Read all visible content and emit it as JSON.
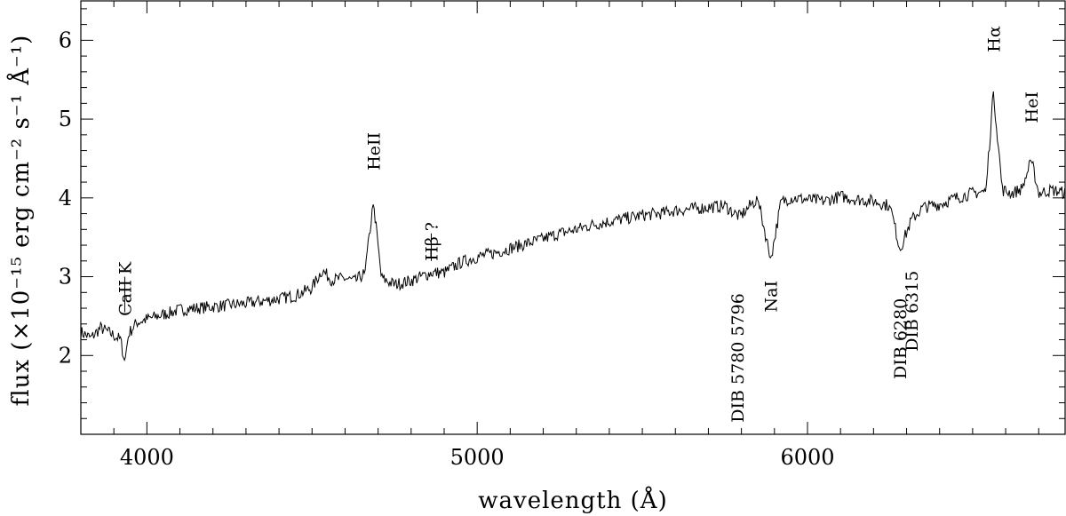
{
  "chart_data": {
    "type": "line",
    "xlabel": "wavelength (Å)",
    "ylabel": "flux (×10⁻¹⁵ erg cm⁻² s⁻¹ Å⁻¹)",
    "xlim": [
      3800,
      6780
    ],
    "ylim": [
      1.0,
      6.5
    ],
    "x_ticks": [
      {
        "value": 4000,
        "label": "4000"
      },
      {
        "value": 5000,
        "label": "5000"
      },
      {
        "value": 6000,
        "label": "6000"
      }
    ],
    "y_ticks": [
      {
        "value": 2,
        "label": "2"
      },
      {
        "value": 3,
        "label": "3"
      },
      {
        "value": 4,
        "label": "4"
      },
      {
        "value": 5,
        "label": "5"
      },
      {
        "value": 6,
        "label": "6"
      }
    ],
    "grid": false,
    "legend": "none",
    "series": [
      {
        "x": [
          3800,
          3830,
          3860,
          3890,
          3920,
          3933,
          3945,
          3970,
          4000,
          4050,
          4100,
          4150,
          4200,
          4250,
          4300,
          4350,
          4400,
          4450,
          4500,
          4530,
          4560,
          4600,
          4630,
          4660,
          4686,
          4710,
          4750,
          4800,
          4861,
          4900,
          4950,
          5000,
          5050,
          5100,
          5150,
          5200,
          5250,
          5300,
          5350,
          5400,
          5450,
          5500,
          5550,
          5600,
          5650,
          5700,
          5750,
          5780,
          5796,
          5830,
          5850,
          5889,
          5920,
          5950,
          6000,
          6050,
          6100,
          6150,
          6200,
          6250,
          6280,
          6315,
          6350,
          6400,
          6450,
          6500,
          6540,
          6563,
          6590,
          6620,
          6650,
          6678,
          6700,
          6740,
          6780
        ],
        "y": [
          2.3,
          2.22,
          2.35,
          2.28,
          2.2,
          1.92,
          2.28,
          2.42,
          2.46,
          2.52,
          2.58,
          2.6,
          2.62,
          2.64,
          2.66,
          2.69,
          2.72,
          2.76,
          2.86,
          3.08,
          2.96,
          2.98,
          2.94,
          3.05,
          3.95,
          2.98,
          2.9,
          2.95,
          3.05,
          3.05,
          3.18,
          3.25,
          3.3,
          3.36,
          3.42,
          3.48,
          3.55,
          3.6,
          3.66,
          3.7,
          3.74,
          3.78,
          3.8,
          3.84,
          3.86,
          3.88,
          3.9,
          3.8,
          3.76,
          3.92,
          3.98,
          3.22,
          3.95,
          4.0,
          3.98,
          3.96,
          4.02,
          3.98,
          3.96,
          3.9,
          3.35,
          3.72,
          3.88,
          3.92,
          4.0,
          4.06,
          4.08,
          5.35,
          4.1,
          4.06,
          4.12,
          4.48,
          4.06,
          4.1,
          4.06
        ],
        "noise_amplitude": 0.08
      }
    ],
    "annotations": [
      {
        "label": "CaII K",
        "x": 3933,
        "y": 2.5
      },
      {
        "label": "HeII",
        "x": 4686,
        "y": 4.35
      },
      {
        "label": "Hβ ?",
        "x": 4861,
        "y": 3.2
      },
      {
        "label": "DIB 5780 5796",
        "x": 5788,
        "y": 1.15
      },
      {
        "label": "NaI",
        "x": 5889,
        "y": 2.55
      },
      {
        "label": "DIB 6280",
        "x": 6280,
        "y": 1.7
      },
      {
        "label": "DIB 6315",
        "x": 6315,
        "y": 2.05
      },
      {
        "label": "Hα",
        "x": 6563,
        "y": 5.85
      },
      {
        "label": "HeI",
        "x": 6678,
        "y": 4.95
      }
    ]
  }
}
